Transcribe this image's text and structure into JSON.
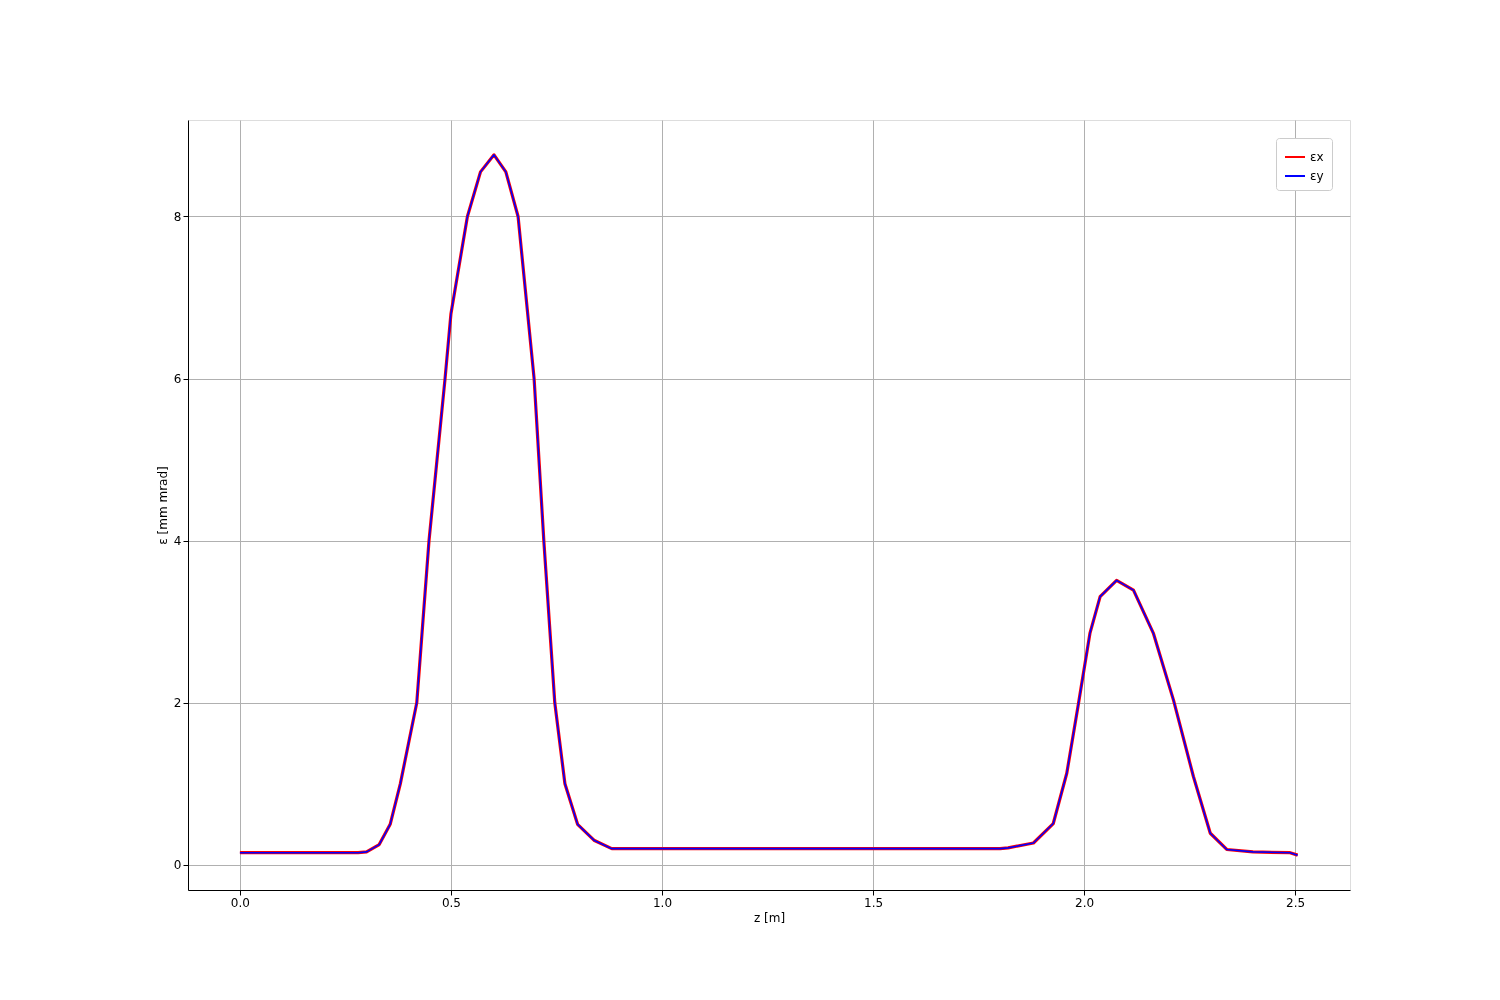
{
  "chart_data": {
    "type": "line",
    "xlabel": "z [m]",
    "ylabel": "ε [mm mrad]",
    "xlim": [
      -0.123,
      2.63
    ],
    "ylim": [
      -0.31,
      9.19
    ],
    "xticks": [
      {
        "value": 0,
        "label": "0.0"
      },
      {
        "value": 0.5,
        "label": "0.5"
      },
      {
        "value": 1,
        "label": "1.0"
      },
      {
        "value": 1.5,
        "label": "1.5"
      },
      {
        "value": 2,
        "label": "2.0"
      },
      {
        "value": 2.5,
        "label": "2.5"
      }
    ],
    "yticks": [
      0,
      2,
      4,
      6,
      8
    ],
    "grid": true,
    "legend": "top right",
    "marker": "none",
    "line_style": "solid",
    "x": [
      0,
      0.1,
      0.2,
      0.28,
      0.3,
      0.33,
      0.356,
      0.38,
      0.419,
      0.448,
      0.486,
      0.5,
      0.539,
      0.57,
      0.602,
      0.63,
      0.659,
      0.697,
      0.72,
      0.746,
      0.77,
      0.8,
      0.84,
      0.881,
      1.2,
      1.5,
      1.801,
      1.82,
      1.88,
      1.927,
      1.959,
      1.987,
      2.014,
      2.038,
      2.077,
      2.117,
      2.164,
      2.212,
      2.259,
      2.299,
      2.338,
      2.4,
      2.488,
      2.506
    ],
    "series": [
      {
        "name": "εx",
        "color": "#ff0000",
        "values": [
          0.15,
          0.15,
          0.15,
          0.15,
          0.16,
          0.25,
          0.5,
          1.0,
          2.0,
          4.0,
          6.0,
          6.8,
          8.0,
          8.55,
          8.76,
          8.55,
          8.0,
          6.0,
          4.0,
          2.0,
          1.0,
          0.5,
          0.3,
          0.2,
          0.2,
          0.2,
          0.2,
          0.21,
          0.27,
          0.51,
          1.13,
          2.0,
          2.86,
          3.31,
          3.51,
          3.39,
          2.86,
          2.03,
          1.09,
          0.39,
          0.19,
          0.16,
          0.15,
          0.12
        ]
      },
      {
        "name": "εy",
        "color": "#0000ff",
        "values": [
          0.15,
          0.15,
          0.15,
          0.15,
          0.16,
          0.25,
          0.5,
          1.0,
          2.0,
          4.0,
          6.0,
          6.8,
          8.0,
          8.55,
          8.76,
          8.55,
          8.0,
          6.0,
          4.0,
          2.0,
          1.0,
          0.5,
          0.3,
          0.2,
          0.2,
          0.2,
          0.2,
          0.21,
          0.27,
          0.51,
          1.13,
          2.0,
          2.86,
          3.31,
          3.51,
          3.39,
          2.86,
          2.03,
          1.09,
          0.39,
          0.19,
          0.16,
          0.15,
          0.12
        ]
      }
    ]
  }
}
